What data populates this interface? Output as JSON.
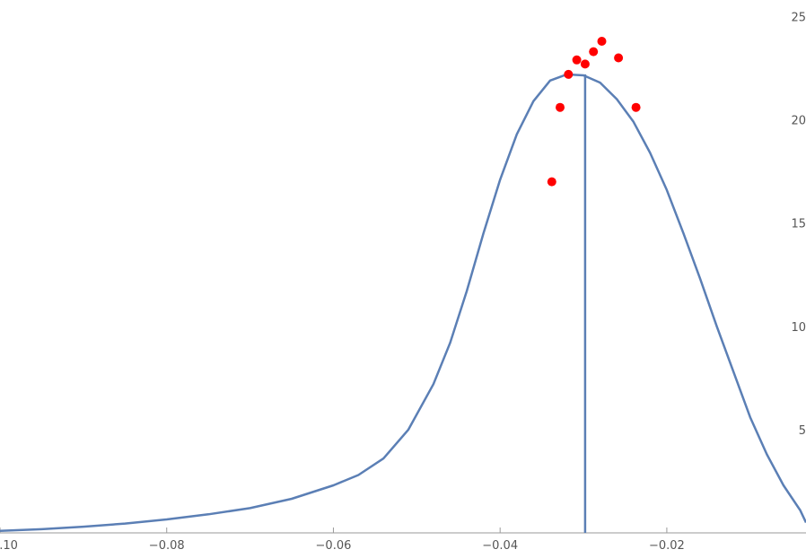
{
  "chart_data": {
    "type": "line",
    "xlim": [
      -0.1,
      -0.0033
    ],
    "ylim": [
      0,
      25.8
    ],
    "x_ticks": [
      {
        "value": -0.1,
        "label": "−0.10"
      },
      {
        "value": -0.08,
        "label": "−0.08"
      },
      {
        "value": -0.06,
        "label": "−0.06"
      },
      {
        "value": -0.04,
        "label": "−0.04"
      },
      {
        "value": -0.02,
        "label": "−0.02"
      }
    ],
    "y_ticks": [
      {
        "value": 5,
        "label": "5"
      },
      {
        "value": 10,
        "label": "10"
      },
      {
        "value": 15,
        "label": "15"
      },
      {
        "value": 20,
        "label": "20"
      },
      {
        "value": 25,
        "label": "25"
      }
    ],
    "series": [
      {
        "kind": "curve",
        "color": "#5b7fb5",
        "x": [
          -0.1,
          -0.095,
          -0.09,
          -0.085,
          -0.08,
          -0.075,
          -0.07,
          -0.065,
          -0.06,
          -0.057,
          -0.054,
          -0.051,
          -0.048,
          -0.046,
          -0.044,
          -0.042,
          -0.04,
          -0.038,
          -0.036,
          -0.034,
          -0.032,
          -0.03,
          -0.028,
          -0.026,
          -0.024,
          -0.022,
          -0.02,
          -0.018,
          -0.016,
          -0.014,
          -0.012,
          -0.01,
          -0.008,
          -0.006,
          -0.004,
          -0.0033
        ],
        "y": [
          0.1,
          0.18,
          0.3,
          0.45,
          0.65,
          0.9,
          1.2,
          1.65,
          2.3,
          2.8,
          3.6,
          5.0,
          7.2,
          9.2,
          11.7,
          14.5,
          17.1,
          19.3,
          20.9,
          21.9,
          22.2,
          22.15,
          21.8,
          21.0,
          19.9,
          18.4,
          16.6,
          14.5,
          12.3,
          10.0,
          7.8,
          5.6,
          3.8,
          2.3,
          1.1,
          0.5
        ]
      },
      {
        "kind": "vertical-line",
        "color": "#5b7fb5",
        "x": -0.0298,
        "y_top": 22.2
      },
      {
        "kind": "scatter",
        "color": "#ff0000",
        "x": [
          -0.0338,
          -0.0328,
          -0.0318,
          -0.0308,
          -0.0298,
          -0.0288,
          -0.0278,
          -0.0258,
          -0.0237
        ],
        "y": [
          17.0,
          20.6,
          22.2,
          22.9,
          22.7,
          23.3,
          23.8,
          23.0,
          20.6
        ]
      }
    ]
  }
}
